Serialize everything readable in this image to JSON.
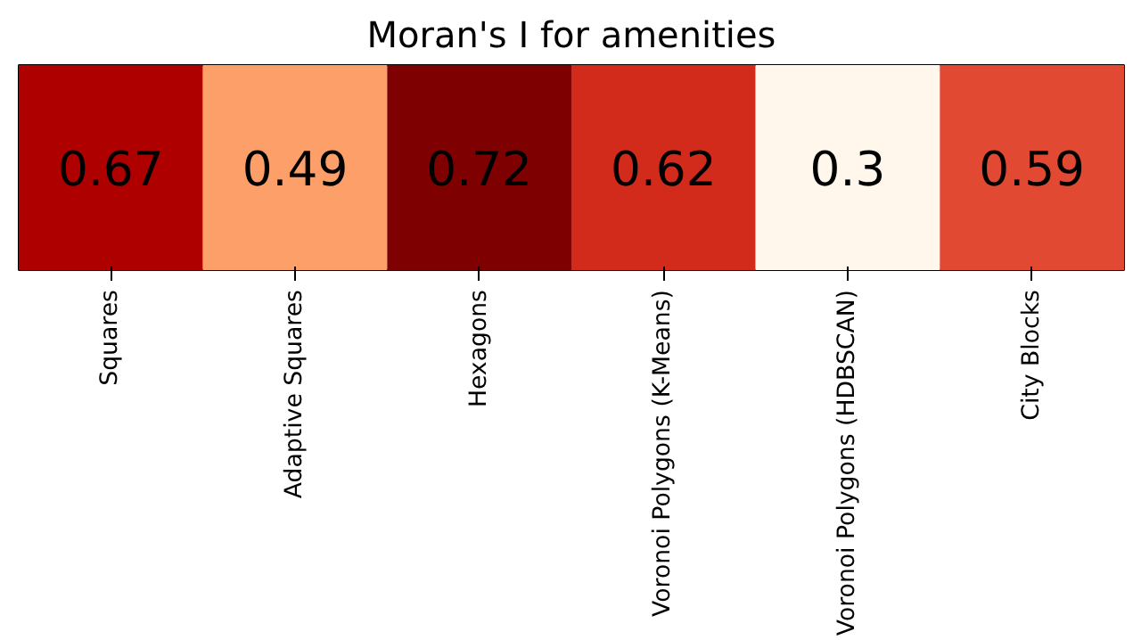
{
  "chart_data": {
    "type": "heatmap",
    "title": "Moran's I for amenities",
    "categories": [
      "Squares",
      "Adaptive Squares",
      "Hexagons",
      "Voronoi Polygons (K-Means)",
      "Voronoi Polygons (HDBSCAN)",
      "City Blocks"
    ],
    "y_categories": [
      null
    ],
    "cells": [
      [
        0.67,
        0.49,
        0.72,
        0.62,
        0.3,
        0.59
      ]
    ],
    "cell_labels": [
      [
        "0.67",
        "0.49",
        "0.72",
        "0.62",
        "0.3",
        "0.59"
      ]
    ]
  }
}
